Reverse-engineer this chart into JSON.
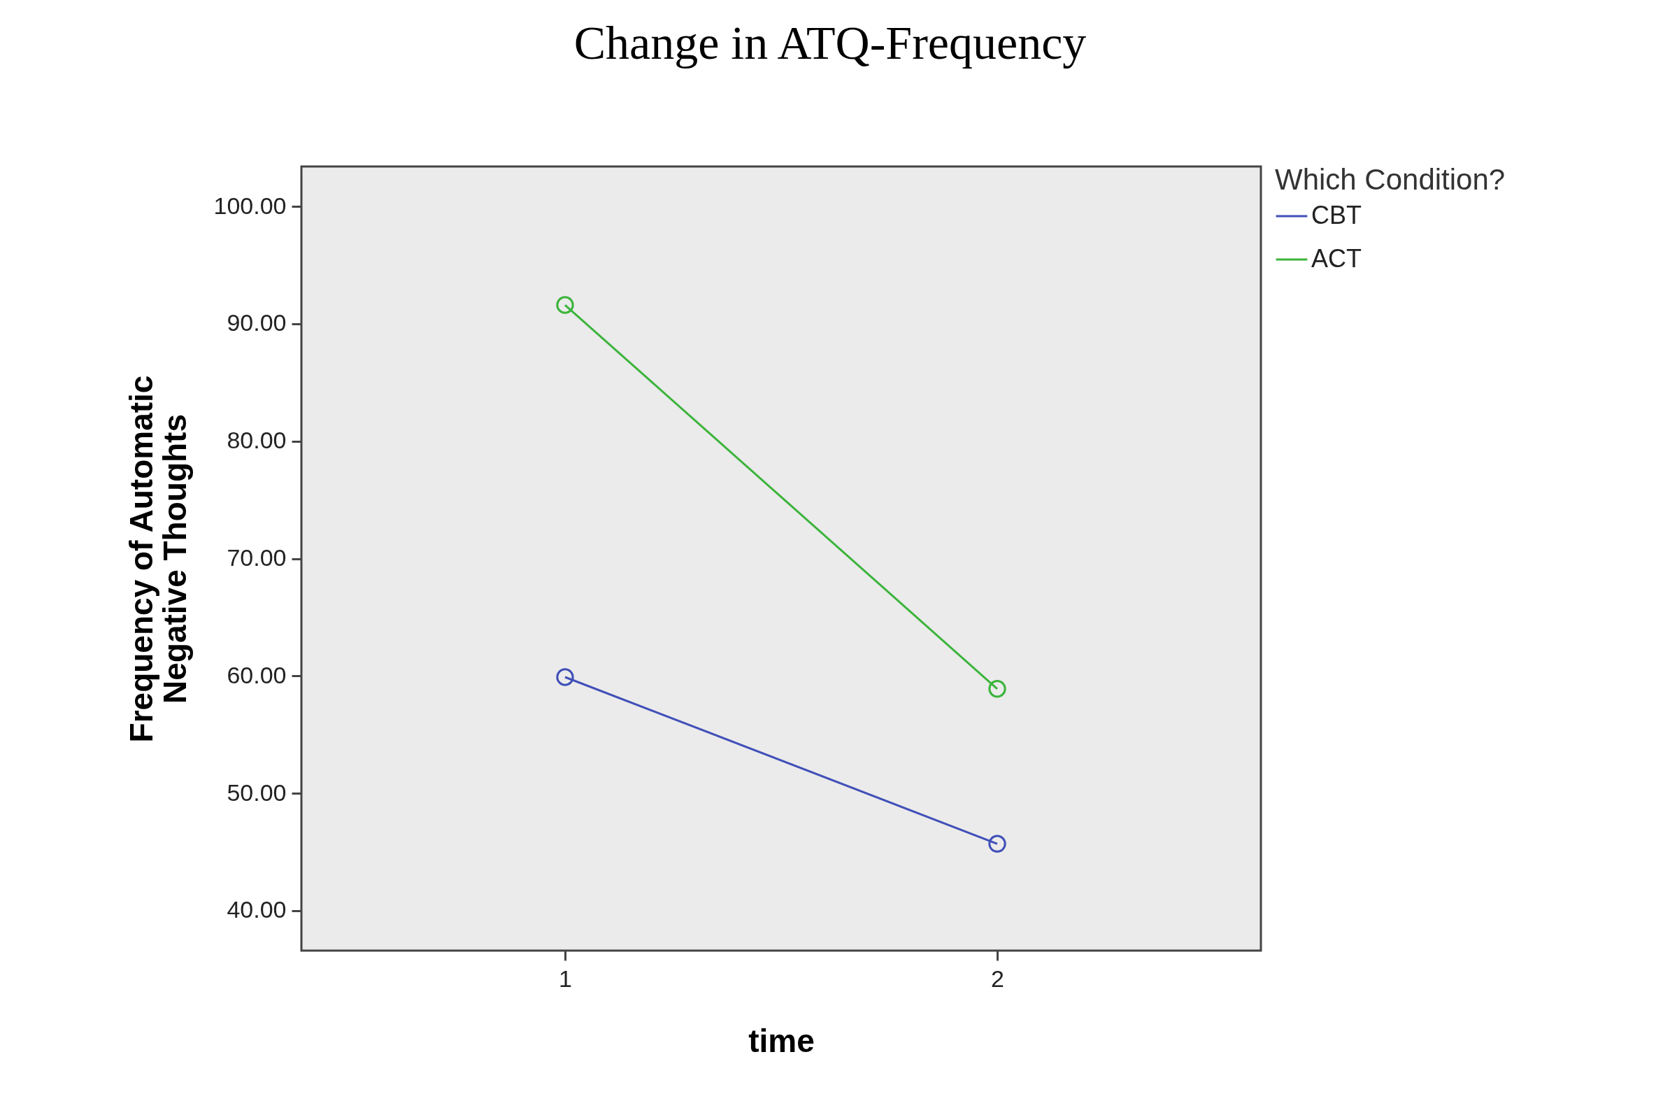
{
  "chart_data": {
    "type": "line",
    "title": "Change in ATQ-Frequency",
    "xlabel": "time",
    "ylabel": "Frequency of Automatic Negative Thoughts",
    "legend_title": "Which Condition?",
    "x": [
      1,
      2
    ],
    "series": [
      {
        "name": "CBT",
        "color": "#4050b8",
        "values": [
          59.9,
          45.7
        ]
      },
      {
        "name": "ACT",
        "color": "#3cb43c",
        "values": [
          91.6,
          58.9
        ]
      }
    ],
    "xlim": [
      0.39,
      2.61
    ],
    "xticks": [
      1,
      2
    ],
    "ylim": [
      36.6,
      103.4
    ],
    "yticks": [
      {
        "value": 40,
        "label": "40.00"
      },
      {
        "value": 50,
        "label": "50.00"
      },
      {
        "value": 60,
        "label": "60.00"
      },
      {
        "value": 70,
        "label": "70.00"
      },
      {
        "value": 80,
        "label": "80.00"
      },
      {
        "value": 90,
        "label": "90.00"
      },
      {
        "value": 100,
        "label": "100.00"
      }
    ],
    "grid": false,
    "legend": "top right",
    "marker": "circle",
    "line_style": "solid"
  }
}
